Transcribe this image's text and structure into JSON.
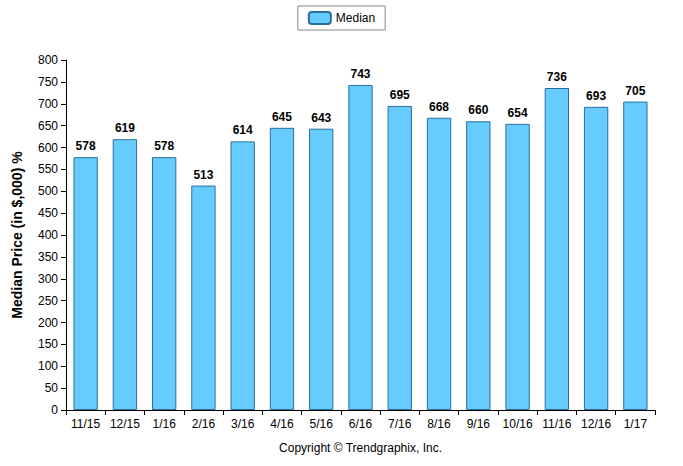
{
  "chart_data": {
    "type": "bar",
    "categories": [
      "11/15",
      "12/15",
      "1/16",
      "2/16",
      "3/16",
      "4/16",
      "5/16",
      "6/16",
      "7/16",
      "8/16",
      "9/16",
      "10/16",
      "11/16",
      "12/16",
      "1/17"
    ],
    "series": [
      {
        "name": "Median",
        "color": "#66ccff",
        "values": [
          578,
          619,
          578,
          513,
          614,
          645,
          643,
          743,
          695,
          668,
          660,
          654,
          736,
          693,
          705
        ]
      }
    ],
    "ylabel": "Median Price (in $,000) %",
    "xlabel": "Copyright © Trendgraphix, Inc.",
    "ylim": [
      0,
      800
    ],
    "yticks": [
      0,
      50,
      100,
      150,
      200,
      250,
      300,
      350,
      400,
      450,
      500,
      550,
      600,
      650,
      700,
      750,
      800
    ],
    "grid": false,
    "legend": "top",
    "data_labels": true
  }
}
